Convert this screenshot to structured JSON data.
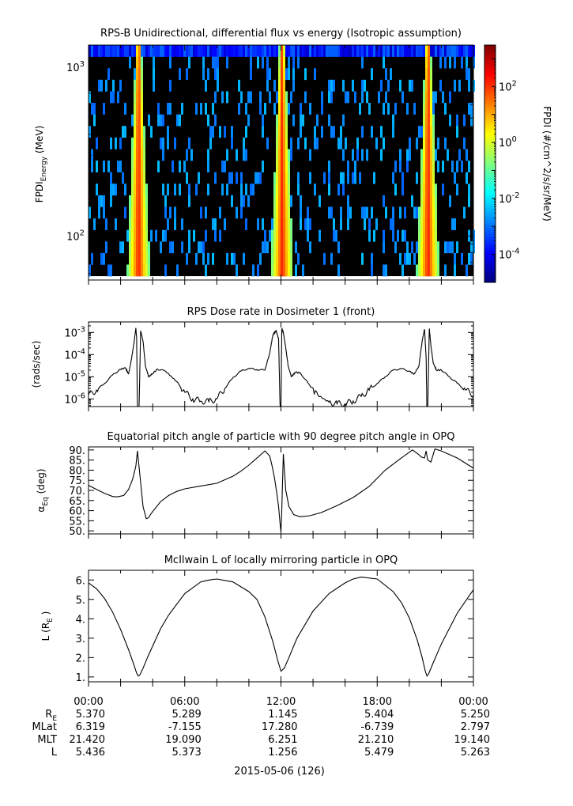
{
  "figure": {
    "colors": {
      "axes": "#000000",
      "trace": "#000000",
      "background": "#ffffff",
      "no_data": "#000000"
    }
  },
  "chart_data": [
    {
      "type": "heatmap",
      "title": "RPS-B  Unidirectional, differential flux vs energy (Isotropic assumption)",
      "ylabel_main": "FPDI",
      "ylabel_sub": "Energy",
      "ylabel_unit": "(MeV)",
      "yscale": "log",
      "ylim": [
        55,
        1350
      ],
      "yticks": [
        {
          "value": 100,
          "base": "10",
          "exp": "2"
        },
        {
          "value": 1000,
          "base": "10",
          "exp": "3"
        }
      ],
      "xlim_hours": [
        0,
        24
      ],
      "colorbar": {
        "label": "FPDI (#/cm^2/s/sr/MeV)",
        "scale": "log",
        "range": [
          1e-05,
          3000
        ],
        "ticks": [
          {
            "value": 0.0001,
            "base": "10",
            "exp": "-4"
          },
          {
            "value": 0.01,
            "base": "10",
            "exp": "-2"
          },
          {
            "value": 1,
            "base": "10",
            "exp": "0"
          },
          {
            "value": 100,
            "base": "10",
            "exp": "2"
          }
        ],
        "colors": [
          "#00007f",
          "#0000ff",
          "#007fff",
          "#00ffff",
          "#7fff7f",
          "#ffff00",
          "#ff7f00",
          "#ff0000",
          "#7f0000"
        ]
      },
      "energy_bins": 20,
      "perigee_hours": [
        3.05,
        12.0,
        21.1
      ],
      "background_level": 0.003
    },
    {
      "type": "line",
      "title": "RPS  Dose rate in Dosimeter 1 (front)",
      "ylabel": "(rads/sec)",
      "yscale": "log",
      "ylim": [
        4.5e-07,
        0.003
      ],
      "yticks": [
        {
          "value": 1e-06,
          "base": "10",
          "exp": "-6"
        },
        {
          "value": 1e-05,
          "base": "10",
          "exp": "-5"
        },
        {
          "value": 0.0001,
          "base": "10",
          "exp": "-4"
        },
        {
          "value": 0.001,
          "base": "10",
          "exp": "-3"
        }
      ],
      "xlim_hours": [
        0,
        24
      ],
      "x": [
        0,
        0.5,
        1,
        1.5,
        2,
        2.3,
        2.5,
        2.7,
        2.85,
        2.95,
        3.0,
        3.05,
        3.1,
        3.15,
        3.25,
        3.4,
        3.55,
        3.75,
        4.0,
        4.3,
        4.8,
        5.5,
        6.0,
        6.5,
        7.0,
        7.5,
        8.0,
        8.5,
        9.0,
        9.5,
        10.0,
        10.5,
        11.0,
        11.3,
        11.5,
        11.7,
        11.85,
        11.95,
        12.0,
        12.05,
        12.15,
        12.3,
        12.45,
        12.65,
        12.9,
        13.2,
        13.7,
        14.3,
        15.0,
        15.5,
        16.0,
        16.5,
        17.0,
        17.5,
        18.0,
        18.5,
        19.0,
        19.5,
        20.0,
        20.3,
        20.6,
        20.8,
        20.95,
        21.05,
        21.1,
        21.15,
        21.25,
        21.35,
        21.5,
        21.7,
        22.0,
        22.5,
        23.0,
        23.5,
        24.0
      ],
      "y": [
        1.5e-06,
        2.5e-06,
        5e-06,
        1.2e-05,
        2.2e-05,
        2.5e-05,
        1.3e-05,
        8e-05,
        0.0004,
        0.0016,
        0.0006,
        3e-07,
        3e-07,
        3e-07,
        0.0012,
        0.0004,
        3e-05,
        1e-05,
        1.4e-05,
        2.2e-05,
        1.8e-05,
        6e-06,
        2e-06,
        1e-06,
        8e-07,
        7.5e-07,
        1e-06,
        3e-06,
        9e-06,
        1.8e-05,
        2.4e-05,
        2.1e-05,
        2e-05,
        0.00012,
        0.0008,
        0.0012,
        0.0005,
        3e-07,
        3e-07,
        0.0015,
        0.001,
        0.0002,
        3e-05,
        1e-05,
        1.6e-05,
        1.5e-05,
        5e-06,
        1.5e-06,
        7e-07,
        6e-07,
        6e-07,
        8e-07,
        1.3e-06,
        2.5e-06,
        5e-06,
        1e-05,
        2e-05,
        2.3e-05,
        1.8e-05,
        1.3e-05,
        3e-05,
        0.0004,
        0.0014,
        8e-05,
        3e-07,
        3e-07,
        0.0015,
        0.00025,
        4e-05,
        2e-05,
        2e-05,
        1e-05,
        5e-06,
        2.5e-06,
        1.5e-06
      ]
    },
    {
      "type": "line",
      "title": "Equatorial pitch angle of particle with 90 degree pitch angle in OPQ",
      "ylabel_main": "α",
      "ylabel_sub": "Eq",
      "ylabel_unit": "(deg)",
      "ylim": [
        48.5,
        91.5
      ],
      "yticks": [
        90,
        85,
        80,
        75,
        70,
        65,
        60,
        55,
        50
      ],
      "ytick_labels": [
        "90.",
        "85.",
        "80.",
        "75.",
        "70.",
        "65.",
        "60.",
        "55.",
        "50."
      ],
      "xlim_hours": [
        0,
        24
      ],
      "x": [
        0,
        0.5,
        1,
        1.5,
        1.8,
        2.2,
        2.5,
        2.75,
        2.95,
        3.05,
        3.2,
        3.4,
        3.6,
        3.75,
        3.9,
        4.2,
        4.5,
        5.0,
        5.5,
        6.0,
        7.0,
        8.0,
        9.0,
        9.5,
        10.0,
        10.5,
        11.0,
        11.3,
        11.45,
        11.6,
        11.75,
        11.85,
        11.95,
        12.0,
        12.05,
        12.15,
        12.3,
        12.5,
        12.8,
        13.2,
        13.8,
        14.5,
        15.5,
        16.5,
        17.5,
        18.5,
        19.5,
        20.2,
        20.55,
        20.75,
        20.95,
        21.05,
        21.15,
        21.35,
        21.6,
        22.0,
        23.0,
        24.0
      ],
      "y": [
        72.5,
        70.5,
        68.5,
        67.0,
        66.8,
        67.5,
        70.5,
        75.5,
        82.0,
        89.5,
        78.0,
        62.0,
        56.0,
        56.5,
        58.5,
        61.5,
        64.5,
        67.5,
        69.5,
        70.8,
        72.2,
        73.5,
        77.0,
        79.5,
        82.5,
        86.0,
        89.5,
        87.0,
        82.0,
        76.0,
        68.0,
        62.0,
        53.0,
        49.5,
        60.0,
        88.0,
        70.0,
        62.0,
        58.0,
        57.0,
        57.5,
        59.0,
        62.5,
        66.5,
        72.0,
        80.0,
        86.0,
        90.0,
        88.0,
        86.5,
        86.0,
        89.5,
        85.0,
        84.0,
        90.5,
        89.5,
        86.0,
        81.0
      ]
    },
    {
      "type": "line",
      "title": "McIlwain L of locally mirroring particle in OPQ",
      "ylabel_main": "L (R",
      "ylabel_sub": "E",
      "ylabel_unit": ")",
      "ylim": [
        0.75,
        6.5
      ],
      "yticks": [
        1,
        2,
        3,
        4,
        5,
        6
      ],
      "ytick_labels": [
        "1.",
        "2.",
        "3.",
        "4.",
        "5.",
        "6."
      ],
      "xlim_hours": [
        0,
        24
      ],
      "x": [
        0,
        0.5,
        1,
        1.5,
        2,
        2.5,
        2.8,
        3.0,
        3.1,
        3.2,
        3.4,
        3.7,
        4.0,
        4.5,
        5,
        6,
        7,
        7.5,
        8,
        9,
        10,
        10.5,
        11,
        11.5,
        11.8,
        12.0,
        12.2,
        12.5,
        13,
        14,
        15,
        16,
        16.5,
        17,
        18,
        19,
        19.5,
        20,
        20.5,
        20.8,
        21.0,
        21.1,
        21.2,
        21.5,
        22,
        23,
        24
      ],
      "y": [
        5.85,
        5.55,
        5.05,
        4.35,
        3.45,
        2.4,
        1.7,
        1.2,
        1.05,
        1.1,
        1.45,
        2.05,
        2.6,
        3.5,
        4.2,
        5.3,
        5.9,
        6.0,
        6.05,
        5.9,
        5.4,
        5.0,
        4.1,
        2.8,
        1.85,
        1.3,
        1.45,
        2.0,
        3.0,
        4.4,
        5.3,
        5.85,
        6.05,
        6.15,
        6.05,
        5.4,
        4.85,
        4.05,
        2.9,
        2.0,
        1.3,
        1.05,
        1.15,
        1.75,
        2.7,
        4.3,
        5.5
      ]
    }
  ],
  "x_axis": {
    "tick_hours": [
      0,
      6,
      12,
      18,
      24
    ],
    "time_labels": [
      "00:00",
      "06:00",
      "12:00",
      "18:00",
      "00:00"
    ],
    "ephemeris": [
      {
        "key": "R",
        "sub": "E",
        "values": [
          "5.370",
          "5.289",
          "1.145",
          "5.404",
          "5.250"
        ]
      },
      {
        "key": "MLat",
        "sub": "",
        "values": [
          "6.319",
          "-7.155",
          "17.280",
          "-6.739",
          "2.797"
        ]
      },
      {
        "key": "MLT",
        "sub": "",
        "values": [
          "21.420",
          "19.090",
          "6.251",
          "21.210",
          "19.140"
        ]
      },
      {
        "key": "L",
        "sub": "",
        "values": [
          "5.436",
          "5.373",
          "1.256",
          "5.479",
          "5.263"
        ]
      }
    ],
    "date_label": "2015-05-06 (126)"
  }
}
